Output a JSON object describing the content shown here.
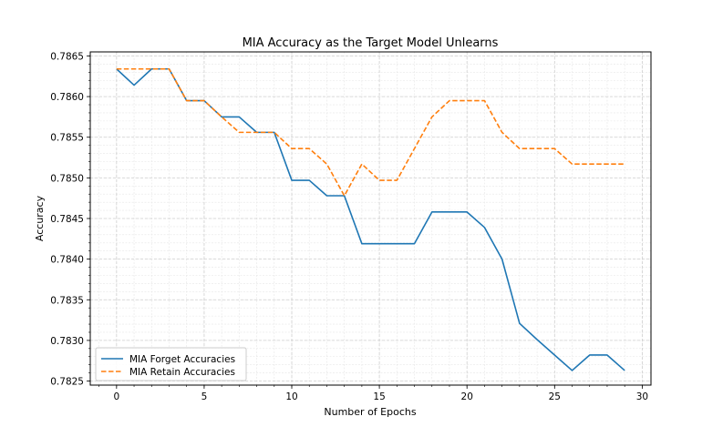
{
  "chart_data": {
    "type": "line",
    "title": "MIA Accuracy as the Target Model Unlearns",
    "xlabel": "Number of Epochs",
    "ylabel": "Accuracy",
    "xlim": [
      -1.5,
      30.5
    ],
    "ylim": [
      0.78245,
      0.78655
    ],
    "xticks": [
      0,
      5,
      10,
      15,
      20,
      25,
      30
    ],
    "yticks": [
      0.7825,
      0.783,
      0.7835,
      0.784,
      0.7845,
      0.785,
      0.7855,
      0.786,
      0.7865
    ],
    "ytick_labels": [
      "0.7825",
      "0.7830",
      "0.7835",
      "0.7840",
      "0.7845",
      "0.7850",
      "0.7855",
      "0.7860",
      "0.7865"
    ],
    "grid": "major and minor",
    "legend_position": "lower-left",
    "x": [
      0,
      1,
      2,
      3,
      4,
      5,
      6,
      7,
      8,
      9,
      10,
      11,
      12,
      13,
      14,
      15,
      16,
      17,
      18,
      19,
      20,
      21,
      22,
      23,
      24,
      25,
      26,
      27,
      28,
      29
    ],
    "series": [
      {
        "name": "MIA Forget Accuracies",
        "color": "#1f77b4",
        "style": "solid",
        "values": [
          0.78634,
          0.78614,
          0.78634,
          0.78634,
          0.78595,
          0.78595,
          0.78575,
          0.78575,
          0.78556,
          0.78556,
          0.78497,
          0.78497,
          0.78478,
          0.78478,
          0.78419,
          0.78419,
          0.78419,
          0.78419,
          0.78458,
          0.78458,
          0.78458,
          0.78439,
          0.784,
          0.78321,
          0.78301,
          0.78282,
          0.78263,
          0.78282,
          0.78282,
          0.78263
        ]
      },
      {
        "name": "MIA Retain Accuracies",
        "color": "#ff7f0e",
        "style": "dashed",
        "values": [
          0.78634,
          0.78634,
          0.78634,
          0.78634,
          0.78595,
          0.78595,
          0.78575,
          0.78556,
          0.78556,
          0.78556,
          0.78536,
          0.78536,
          0.78517,
          0.78478,
          0.78517,
          0.78497,
          0.78497,
          0.78536,
          0.78575,
          0.78595,
          0.78595,
          0.78595,
          0.78556,
          0.78536,
          0.78536,
          0.78536,
          0.78517,
          0.78517,
          0.78517,
          0.78517
        ]
      }
    ]
  }
}
